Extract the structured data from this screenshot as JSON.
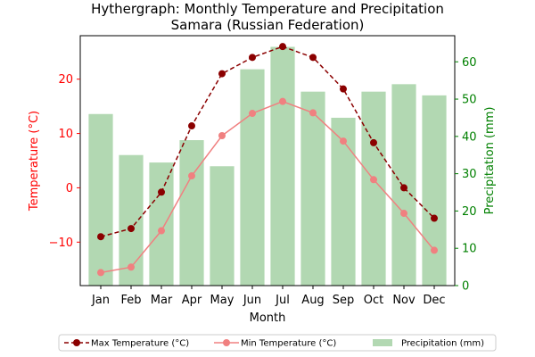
{
  "chart_data": {
    "type": "bar",
    "title": "Hythergraph: Monthly Temperature and Precipitation",
    "subtitle": "Samara (Russian Federation)",
    "xlabel": "Month",
    "ylabel_left": "Temperature (°C)",
    "ylabel_right": "Precipitation (mm)",
    "categories": [
      "Jan",
      "Feb",
      "Mar",
      "Apr",
      "May",
      "Jun",
      "Jul",
      "Aug",
      "Sep",
      "Oct",
      "Nov",
      "Dec"
    ],
    "ylim_left": [
      -18,
      28
    ],
    "ylim_right": [
      0,
      67
    ],
    "yticks_left": [
      -10,
      0,
      10,
      20
    ],
    "yticks_right": [
      0,
      10,
      20,
      30,
      40,
      50,
      60
    ],
    "legend_position": "bottom-center",
    "grid": false,
    "series": [
      {
        "name": "Max Temperature (°C)",
        "kind": "line",
        "axis": "left",
        "color": "#8b0000",
        "linestyle": "dashed",
        "values": [
          -9,
          -7.5,
          -0.8,
          11.4,
          21,
          24,
          26,
          24,
          18.2,
          8.3,
          0,
          -5.6
        ]
      },
      {
        "name": "Min Temperature (°C)",
        "kind": "line",
        "axis": "left",
        "color": "#f08080",
        "linestyle": "solid",
        "values": [
          -15.6,
          -14.6,
          -7.9,
          2.2,
          9.6,
          13.7,
          15.9,
          13.8,
          8.6,
          1.5,
          -4.7,
          -11.5
        ]
      },
      {
        "name": "Precipitation (mm)",
        "kind": "bar",
        "axis": "right",
        "color": "#b2d8b2",
        "values": [
          46,
          35,
          33,
          39,
          32,
          58,
          64,
          52,
          45,
          52,
          54,
          51
        ]
      }
    ]
  }
}
